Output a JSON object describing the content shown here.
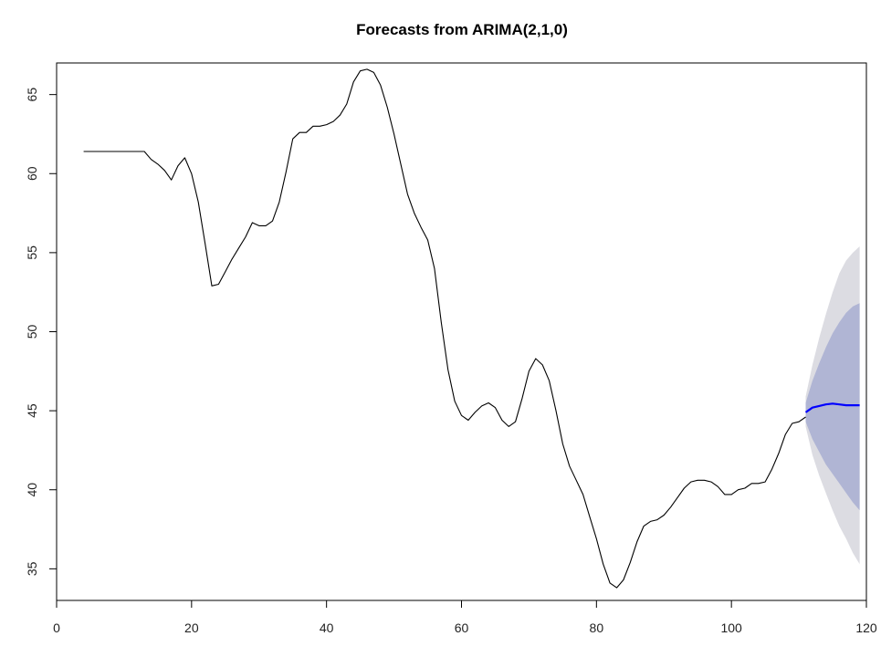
{
  "chart_data": {
    "type": "line",
    "title": "Forecasts from ARIMA(2,1,0)",
    "xlabel": "",
    "ylabel": "",
    "xlim": [
      0,
      120
    ],
    "ylim": [
      33,
      67
    ],
    "x_ticks": [
      0,
      20,
      40,
      60,
      80,
      100,
      120
    ],
    "y_ticks": [
      35,
      40,
      45,
      50,
      55,
      60,
      65
    ],
    "grid": false,
    "legend": "none",
    "colors": {
      "observed": "#000000",
      "forecast": "#0000ff",
      "band80": "#b0b5d4",
      "band95": "#dcdce2"
    },
    "series": [
      {
        "values": [
          [
            4,
            61.4
          ],
          [
            5,
            61.4
          ],
          [
            6,
            61.4
          ],
          [
            7,
            61.4
          ],
          [
            8,
            61.4
          ],
          [
            9,
            61.4
          ],
          [
            10,
            61.4
          ],
          [
            11,
            61.4
          ],
          [
            12,
            61.4
          ],
          [
            13,
            61.4
          ],
          [
            14,
            60.9
          ],
          [
            15,
            60.6
          ],
          [
            16,
            60.2
          ],
          [
            17,
            59.6
          ],
          [
            18,
            60.5
          ],
          [
            19,
            61.0
          ],
          [
            20,
            60.0
          ],
          [
            21,
            58.2
          ],
          [
            22,
            55.6
          ],
          [
            23,
            52.9
          ],
          [
            24,
            53.0
          ],
          [
            25,
            53.8
          ],
          [
            26,
            54.6
          ],
          [
            27,
            55.3
          ],
          [
            28,
            56.0
          ],
          [
            29,
            56.9
          ],
          [
            30,
            56.7
          ],
          [
            31,
            56.7
          ],
          [
            32,
            57.0
          ],
          [
            33,
            58.2
          ],
          [
            34,
            60.1
          ],
          [
            35,
            62.2
          ],
          [
            36,
            62.6
          ],
          [
            37,
            62.6
          ],
          [
            38,
            63.0
          ],
          [
            39,
            63.0
          ],
          [
            40,
            63.1
          ],
          [
            41,
            63.3
          ],
          [
            42,
            63.7
          ],
          [
            43,
            64.4
          ],
          [
            44,
            65.8
          ],
          [
            45,
            66.5
          ],
          [
            46,
            66.6
          ],
          [
            47,
            66.4
          ],
          [
            48,
            65.6
          ],
          [
            49,
            64.2
          ],
          [
            50,
            62.5
          ],
          [
            51,
            60.6
          ],
          [
            52,
            58.7
          ],
          [
            53,
            57.5
          ],
          [
            54,
            56.6
          ],
          [
            55,
            55.8
          ],
          [
            56,
            54.0
          ],
          [
            57,
            50.6
          ],
          [
            58,
            47.6
          ],
          [
            59,
            45.6
          ],
          [
            60,
            44.7
          ],
          [
            61,
            44.4
          ],
          [
            62,
            44.9
          ],
          [
            63,
            45.3
          ],
          [
            64,
            45.5
          ],
          [
            65,
            45.2
          ],
          [
            66,
            44.4
          ],
          [
            67,
            44.0
          ],
          [
            68,
            44.3
          ],
          [
            69,
            45.8
          ],
          [
            70,
            47.5
          ],
          [
            71,
            48.3
          ],
          [
            72,
            47.9
          ],
          [
            73,
            46.9
          ],
          [
            74,
            45.0
          ],
          [
            75,
            42.9
          ],
          [
            76,
            41.5
          ],
          [
            77,
            40.6
          ],
          [
            78,
            39.7
          ],
          [
            79,
            38.3
          ],
          [
            80,
            36.9
          ],
          [
            81,
            35.3
          ],
          [
            82,
            34.1
          ],
          [
            83,
            33.8
          ],
          [
            84,
            34.3
          ],
          [
            85,
            35.4
          ],
          [
            86,
            36.7
          ],
          [
            87,
            37.7
          ],
          [
            88,
            38.0
          ],
          [
            89,
            38.1
          ],
          [
            90,
            38.4
          ],
          [
            91,
            38.9
          ],
          [
            92,
            39.5
          ],
          [
            93,
            40.1
          ],
          [
            94,
            40.5
          ],
          [
            95,
            40.6
          ],
          [
            96,
            40.6
          ],
          [
            97,
            40.5
          ],
          [
            98,
            40.2
          ],
          [
            99,
            39.7
          ],
          [
            100,
            39.7
          ],
          [
            101,
            40.0
          ],
          [
            102,
            40.1
          ],
          [
            103,
            40.4
          ],
          [
            104,
            40.4
          ],
          [
            105,
            40.5
          ],
          [
            106,
            41.3
          ],
          [
            107,
            42.3
          ],
          [
            108,
            43.5
          ],
          [
            109,
            44.2
          ],
          [
            110,
            44.3
          ],
          [
            111,
            44.6
          ]
        ]
      },
      {
        "values": [
          [
            111,
            44.9
          ],
          [
            112,
            45.2
          ],
          [
            113,
            45.3
          ],
          [
            114,
            45.4
          ],
          [
            115,
            45.45
          ],
          [
            116,
            45.4
          ],
          [
            117,
            45.35
          ],
          [
            118,
            45.35
          ],
          [
            119,
            45.35
          ]
        ]
      }
    ],
    "intervals": {
      "x": [
        111,
        112,
        113,
        114,
        115,
        116,
        117,
        118,
        119
      ],
      "lo80": [
        44.3,
        43.2,
        42.4,
        41.6,
        41.0,
        40.4,
        39.8,
        39.2,
        38.7
      ],
      "hi80": [
        45.5,
        46.9,
        48.0,
        49.0,
        49.9,
        50.6,
        51.2,
        51.6,
        51.8
      ],
      "lo95": [
        44.0,
        42.2,
        40.9,
        39.8,
        38.7,
        37.7,
        36.9,
        36.0,
        35.3
      ],
      "hi95": [
        45.9,
        47.9,
        49.6,
        51.1,
        52.5,
        53.7,
        54.5,
        55.0,
        55.4
      ]
    }
  }
}
